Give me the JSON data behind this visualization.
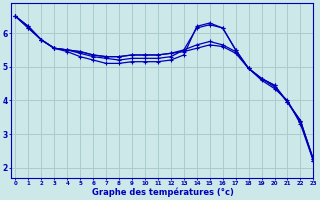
{
  "xlabel": "Graphe des températures (°c)",
  "background_color": "#cce8e8",
  "grid_color": "#aacccc",
  "line_color": "#0000bb",
  "x_ticks": [
    0,
    1,
    2,
    3,
    4,
    5,
    6,
    7,
    8,
    9,
    10,
    11,
    12,
    13,
    14,
    15,
    16,
    17,
    18,
    19,
    20,
    21,
    22,
    23
  ],
  "y_ticks": [
    2,
    3,
    4,
    5,
    6
  ],
  "ylim": [
    1.7,
    6.9
  ],
  "xlim": [
    -0.3,
    23
  ],
  "series": [
    [
      6.5,
      6.2,
      5.8,
      5.55,
      5.5,
      5.45,
      5.35,
      5.3,
      5.3,
      5.35,
      5.35,
      5.35,
      5.4,
      5.45,
      5.55,
      5.65,
      5.6,
      5.4,
      4.95,
      4.65,
      4.45,
      3.95,
      3.4,
      2.25
    ],
    [
      6.5,
      6.2,
      5.8,
      5.55,
      5.5,
      5.45,
      5.35,
      5.3,
      5.3,
      5.35,
      5.35,
      5.35,
      5.4,
      5.5,
      5.65,
      5.75,
      5.65,
      5.45,
      4.95,
      4.65,
      4.45,
      3.95,
      3.35,
      2.25
    ],
    [
      6.5,
      6.15,
      5.8,
      5.55,
      5.5,
      5.4,
      5.3,
      5.25,
      5.2,
      5.25,
      5.25,
      5.25,
      5.3,
      5.5,
      6.15,
      6.25,
      6.15,
      5.5,
      4.95,
      4.65,
      4.4,
      3.95,
      3.4,
      2.2
    ],
    [
      6.5,
      6.15,
      5.8,
      5.55,
      5.45,
      5.3,
      5.2,
      5.1,
      5.1,
      5.15,
      5.15,
      5.15,
      5.2,
      5.35,
      6.2,
      6.3,
      6.15,
      5.5,
      4.95,
      4.6,
      4.35,
      4.0,
      3.3,
      2.2
    ]
  ],
  "markersize": 2.5,
  "linewidth": 0.9
}
